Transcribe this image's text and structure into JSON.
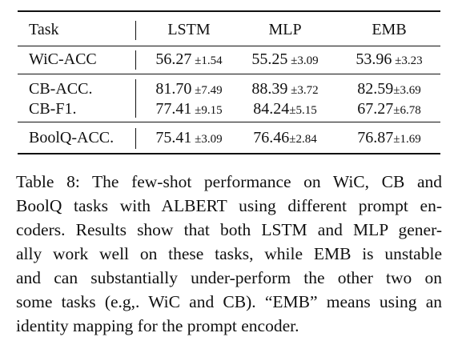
{
  "table": {
    "headers": {
      "task": "Task",
      "lstm": "LSTM",
      "mlp": "MLP",
      "emb": "EMB"
    },
    "rows": [
      {
        "task": "WiC-ACC",
        "lstm": {
          "value": "56.27",
          "pm": " ±1.54"
        },
        "mlp": {
          "value": "55.25",
          "pm": " ±3.09"
        },
        "emb": {
          "value": "53.96",
          "pm": " ±3.23"
        }
      },
      {
        "task": "CB-ACC.",
        "lstm": {
          "value": "81.70",
          "pm": " ±7.49"
        },
        "mlp": {
          "value": "88.39",
          "pm": " ±3.72"
        },
        "emb": {
          "value": "82.59",
          "pm": "±3.69"
        }
      },
      {
        "task": "CB-F1.",
        "lstm": {
          "value": "77.41",
          "pm": " ±9.15"
        },
        "mlp": {
          "value": "84.24",
          "pm": "±5.15"
        },
        "emb": {
          "value": "67.27",
          "pm": "±6.78"
        }
      },
      {
        "task": "BoolQ-ACC.",
        "lstm": {
          "value": "75.41",
          "pm": " ±3.09"
        },
        "mlp": {
          "value": "76.46",
          "pm": "±2.84"
        },
        "emb": {
          "value": "76.87",
          "pm": "±1.69"
        }
      }
    ]
  },
  "caption": {
    "lines": [
      "Table 8: The few-shot performance on WiC, CB and",
      "BoolQ tasks with ALBERT using different prompt en-",
      "coders. Results show that both LSTM and MLP gener-",
      "ally work well on these tasks, while EMB is unstable",
      "and can substantially under-perform the other two on",
      "some tasks (e.g,. WiC and CB). “EMB” means using an",
      "identity mapping for the prompt encoder."
    ]
  }
}
